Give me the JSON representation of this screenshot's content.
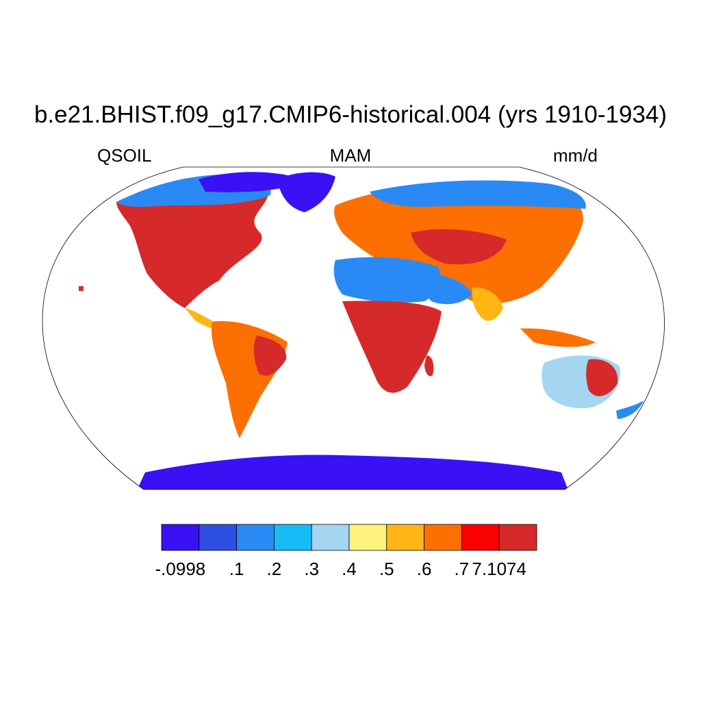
{
  "title": "b.e21.BHIST.f09_g17.CMIP6-historical.004 (yrs 1910-1934)",
  "variable": "QSOIL",
  "season": "MAM",
  "units": "mm/d",
  "colorbar": {
    "colors": [
      "#3a10f5",
      "#2f4fe3",
      "#2a8af5",
      "#16bcf5",
      "#a4d6f2",
      "#fdf27a",
      "#fdb614",
      "#fd6f00",
      "#fb0000",
      "#d62a2a"
    ],
    "labels": [
      "-.0998",
      ".1",
      ".2",
      ".3",
      ".4",
      ".5",
      ".6",
      ".7",
      "7.1074"
    ]
  },
  "legend_colors": {
    "ocean": "#ffffff",
    "coast_line": "#000000"
  }
}
